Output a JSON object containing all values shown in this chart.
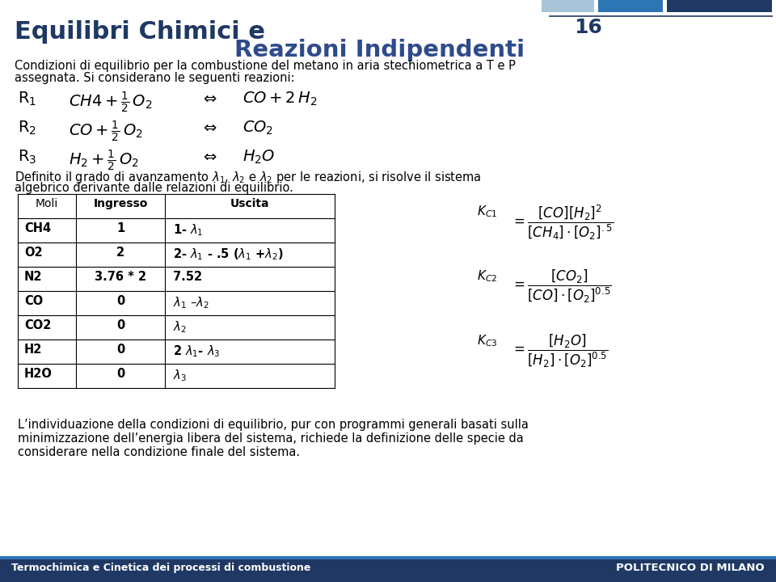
{
  "title_line1": "Equilibri Chimici e",
  "title_line2": "Reazioni Indipendenti",
  "title_color": "#1F3864",
  "subtitle_color": "#2E4B8C",
  "page_number": "16",
  "intro_line1": "Condizioni di equilibrio per la combustione del metano in aria stechiometrica a T e P",
  "intro_line2": "assegnata. Si considerano le seguenti reazioni:",
  "footer_text": "Termochimica e Cinetica dei processi di combustione",
  "footer_bg": "#1F3864",
  "polimi_text": "POLITECNICO DI MILANO",
  "bottom_line1": "L’individuazione della condizioni di equilibrio, pur con programmi generali basati sulla",
  "bottom_line2": "minimizzazione dell’energia libera del sistema, richiede la definizione delle specie da",
  "bottom_line3": "considerare nella condizione finale del sistema.",
  "table_header": [
    "Moli",
    "Ingresso",
    "Uscita"
  ],
  "table_rows": [
    [
      "CH4",
      "1",
      "1- $\\lambda_1$"
    ],
    [
      "O2",
      "2",
      "2- $\\lambda_1$ - .5 ($\\lambda_1$ +$\\lambda_2$)"
    ],
    [
      "N2",
      "3.76 * 2",
      "7.52"
    ],
    [
      "CO",
      "0",
      "$\\lambda_1$ –$\\lambda_2$"
    ],
    [
      "CO2",
      "0",
      "$\\lambda_2$"
    ],
    [
      "H2",
      "0",
      "2 $\\lambda_1$- $\\lambda_3$"
    ],
    [
      "H2O",
      "0",
      "$\\lambda_3$"
    ]
  ],
  "bg_color": "#FFFFFF",
  "header_bar_colors": [
    "#A8C4D8",
    "#2E75B6",
    "#1F3864"
  ]
}
